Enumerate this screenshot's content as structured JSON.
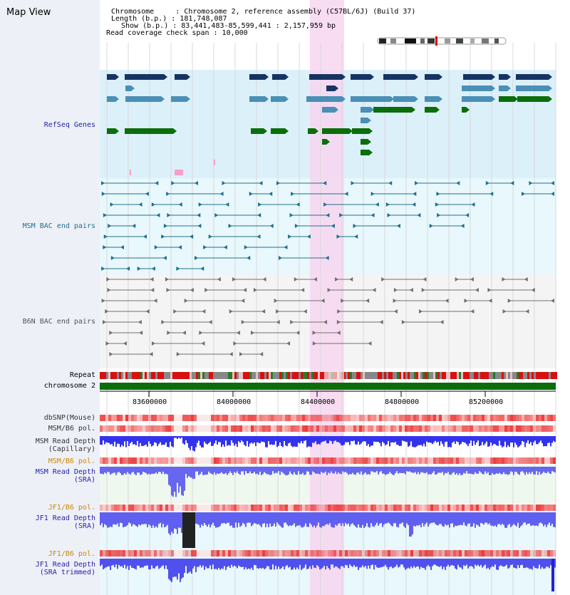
{
  "map_title": "Map View",
  "header": {
    "line1": "Chromosome     : Chromosome 2, reference assembly (C57BL/6J) (Build 37)",
    "line2": "Length (b.p.) : 181,748,087",
    "line3": "Show (b.p.) : 83,441,483-85,599,441 : 2,157,959 bp",
    "line4": "Read coverage check span : 10,000"
  },
  "tracks": {
    "refseq": "RefSeq Genes",
    "msm_bac": "MSM BAC end pairs",
    "b6n_bac": "B6N BAC end pairs",
    "repeat": "Repeat",
    "chromosome": "chromosome 2",
    "dbsnp": "dbSNP(Mouse)",
    "msm_b6_pol": "MSM/B6 pol.",
    "msm_depth_cap": "MSM Read Depth\n(Capillary)",
    "msm_b6_pol2": "MSM/B6 pol.",
    "msm_depth_sra": "MSM Read Depth\n(SRA)",
    "jf1_b6_pol": "JF1/B6 pol.",
    "jf1_depth_sra": "JF1 Read Depth\n(SRA)",
    "jf1_b6_pol2": "JF1/B6 pol.",
    "jf1_depth_trim": "JF1 Read Depth\n(SRA trimmed)"
  },
  "ticks": [
    "83600000",
    "84000000",
    "84400000",
    "84800000",
    "85200000"
  ],
  "colors": {
    "refseq_bg": "#dcf0fa",
    "msm_bg": "#e8f8fc",
    "b6n_bg": "#f4f4f4",
    "highlight": "#f7d6f0",
    "navy": "#163463",
    "teal": "#4a8fb5",
    "green": "#0b6e0b",
    "msm_line": "#1f6f8c",
    "b6n_line": "#707070",
    "chrom": "#0b6e0b",
    "track_blue_label": "#2222aa",
    "track_orange_label": "#cc8800",
    "depth_blue": "#5a5aee",
    "pol_red": "#ee5555"
  }
}
